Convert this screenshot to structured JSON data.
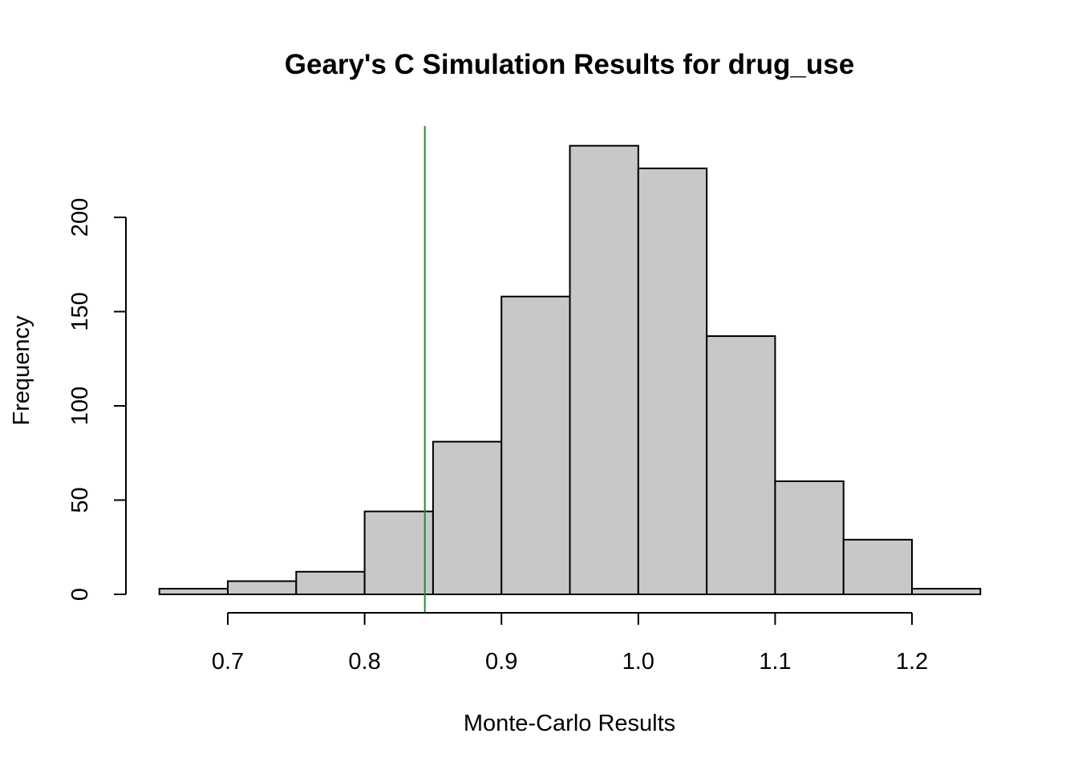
{
  "chart_data": {
    "type": "bar",
    "title": "Geary's C Simulation Results for drug_use",
    "xlabel": "Monte-Carlo Results",
    "ylabel": "Frequency",
    "bins": [
      {
        "start": 0.65,
        "end": 0.7,
        "count": 3
      },
      {
        "start": 0.7,
        "end": 0.75,
        "count": 7
      },
      {
        "start": 0.75,
        "end": 0.8,
        "count": 12
      },
      {
        "start": 0.8,
        "end": 0.85,
        "count": 44
      },
      {
        "start": 0.85,
        "end": 0.9,
        "count": 81
      },
      {
        "start": 0.9,
        "end": 0.95,
        "count": 158
      },
      {
        "start": 0.95,
        "end": 1.0,
        "count": 238
      },
      {
        "start": 1.0,
        "end": 1.05,
        "count": 226
      },
      {
        "start": 1.05,
        "end": 1.1,
        "count": 137
      },
      {
        "start": 1.1,
        "end": 1.15,
        "count": 60
      },
      {
        "start": 1.15,
        "end": 1.2,
        "count": 29
      },
      {
        "start": 1.2,
        "end": 1.25,
        "count": 3
      }
    ],
    "xlim": [
      0.65,
      1.25
    ],
    "ylim": [
      0,
      250
    ],
    "x_ticks": [
      0.7,
      0.8,
      0.9,
      1.0,
      1.1,
      1.2
    ],
    "x_tick_labels": [
      "0.7",
      "0.8",
      "0.9",
      "1.0",
      "1.1",
      "1.2"
    ],
    "y_ticks": [
      0,
      50,
      100,
      150,
      200
    ],
    "y_tick_labels": [
      "0",
      "50",
      "100",
      "150",
      "200"
    ],
    "observed_value": 0.844,
    "bar_color": "#c8c8c8",
    "observed_line_color": "#2e8b2e",
    "grid": false,
    "legend": "none"
  }
}
